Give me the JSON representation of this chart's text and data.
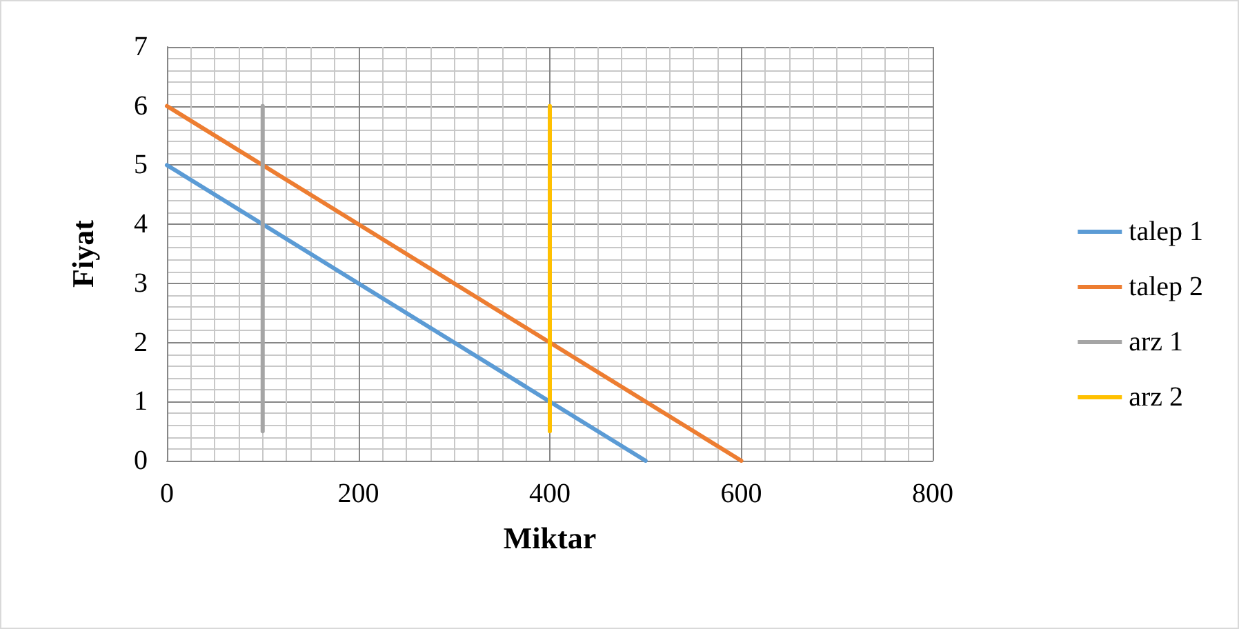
{
  "chart_data": {
    "type": "line",
    "xlabel": "Miktar",
    "ylabel": "Fiyat",
    "xlim": [
      0,
      800
    ],
    "xticks": [
      0,
      200,
      400,
      600,
      800
    ],
    "ylim": [
      0,
      7
    ],
    "yticks": [
      0,
      1,
      2,
      3,
      4,
      5,
      6,
      7
    ],
    "grid": true,
    "legend": "right",
    "marker": "none",
    "line_style": "solid",
    "series": [
      {
        "name": "talep 1",
        "color": "#5b9bd5",
        "x": [
          0,
          500
        ],
        "values": [
          5,
          0
        ]
      },
      {
        "name": "talep 2",
        "color": "#ed7d31",
        "x": [
          0,
          600
        ],
        "values": [
          6,
          0
        ]
      },
      {
        "name": "arz 1",
        "color": "#a5a5a5",
        "x": [
          100,
          100
        ],
        "values": [
          0.5,
          6
        ]
      },
      {
        "name": "arz 2",
        "color": "#ffc000",
        "x": [
          400,
          400
        ],
        "values": [
          0.5,
          6
        ]
      }
    ]
  }
}
